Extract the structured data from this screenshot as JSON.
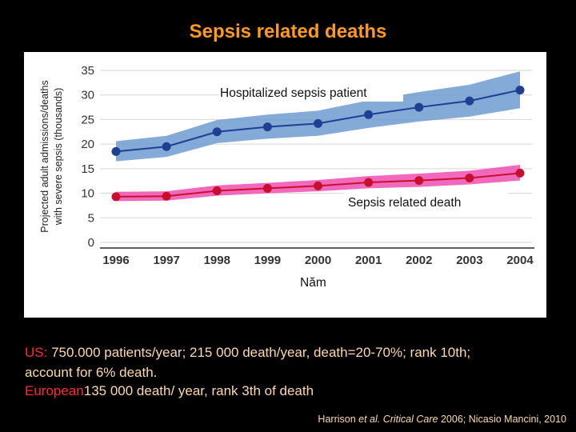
{
  "slide": {
    "title": "Sepsis related deaths",
    "line1_prefix": "US:",
    "line1_rest": " 750.000 patients/year;  215 000 death/year, death=20-70%; rank 10th;",
    "line2": "account for 6% death.",
    "line3_prefix": "European",
    "line3_rest": "135 000 death/ year, rank 3th  of death",
    "citation_authors": "Harrison ",
    "citation_etal": "et al. Critical Care",
    "citation_rest": " 2006; Nicasio Mancini, 2010"
  },
  "colors": {
    "title": "#ff9a1a",
    "highlight": "#ff2b2b",
    "body_text": "#ffd9a8",
    "background": "#000000",
    "series1_line": "#1f3f93",
    "series1_band": "#6f9bd1",
    "series2_line": "#c8102e",
    "series2_band": "#ee4fb2"
  },
  "chart_data": {
    "type": "line",
    "title": "",
    "xlabel": "Năm",
    "ylabel": "Projected adult admissions/deaths with severe sepsis (thousands)",
    "ylabel_lines": [
      "Projected adult admissions/deaths",
      "with severe sepsis (thousands)"
    ],
    "x": [
      1996,
      1997,
      1998,
      1999,
      2000,
      2001,
      2002,
      2003,
      2004
    ],
    "ylim": [
      0,
      35
    ],
    "yticks": [
      0,
      5,
      10,
      15,
      20,
      25,
      30,
      35
    ],
    "grid": true,
    "series": [
      {
        "name": "Hospitalized  sepsis patient",
        "values": [
          18.5,
          19.5,
          22.5,
          23.5,
          24.2,
          26.0,
          27.5,
          28.8,
          31.0
        ],
        "lower": [
          16.5,
          17.4,
          20.2,
          21.1,
          21.7,
          23.3,
          24.6,
          25.6,
          27.3
        ],
        "upper": [
          20.6,
          21.7,
          24.9,
          26.0,
          26.8,
          28.9,
          30.6,
          32.1,
          34.8
        ]
      },
      {
        "name": "Sepsis related death",
        "values": [
          9.3,
          9.4,
          10.5,
          11.0,
          11.5,
          12.2,
          12.6,
          13.1,
          14.1
        ],
        "lower": [
          8.4,
          8.5,
          9.5,
          10.0,
          10.4,
          11.0,
          11.3,
          11.8,
          12.6
        ],
        "upper": [
          10.3,
          10.4,
          11.6,
          12.1,
          12.7,
          13.5,
          14.0,
          14.6,
          15.8
        ]
      }
    ]
  }
}
